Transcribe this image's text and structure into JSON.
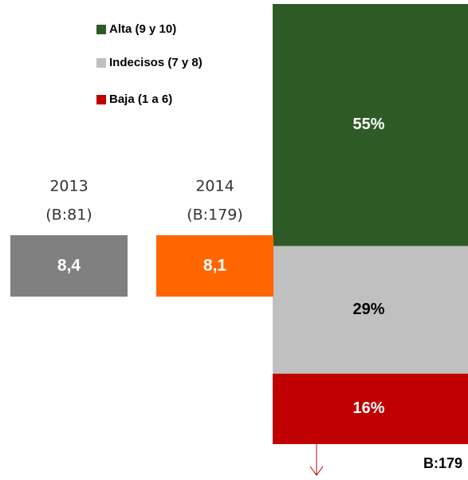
{
  "chart_data": {
    "type": "stacked_bar",
    "categories": [
      null
    ],
    "series": [
      {
        "name": "Alta (9 y 10)",
        "color": "#2e5a26",
        "values": [
          55
        ],
        "value_labels": [
          "55%"
        ]
      },
      {
        "name": "Indecisos (7 y 8)",
        "color": "#c0c0c0",
        "values": [
          29
        ],
        "value_labels": [
          "29%"
        ]
      },
      {
        "name": "Baja (1 a 6)",
        "color": "#c00000",
        "values": [
          16
        ],
        "value_labels": [
          "16%"
        ]
      }
    ],
    "annotation": "B:179"
  },
  "scores": [
    {
      "year": "2013",
      "base": "(B:81)",
      "value": "8,4",
      "color": "#808080"
    },
    {
      "year": "2014",
      "base": "(B:179)",
      "value": "8,1",
      "color": "#ff6600"
    }
  ]
}
